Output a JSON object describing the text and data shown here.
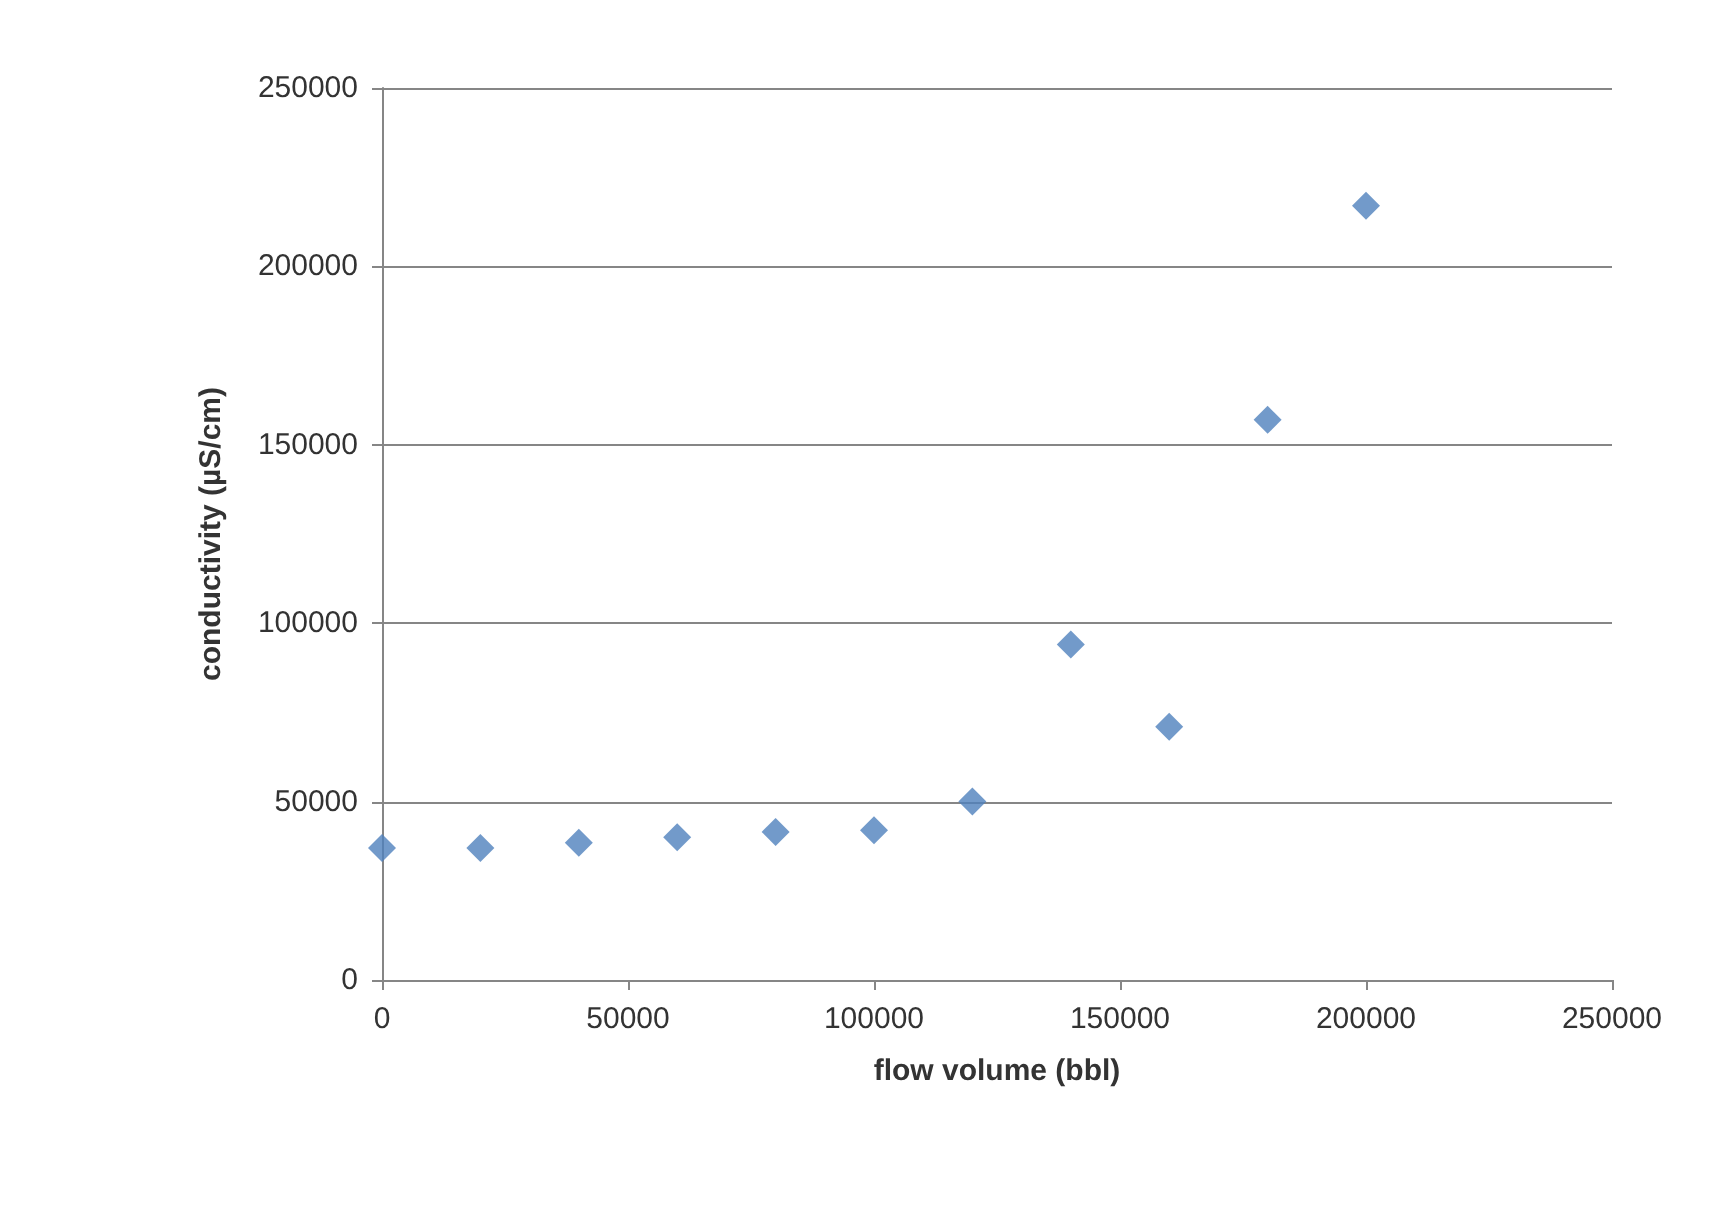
{
  "chart_data": {
    "type": "scatter",
    "xlabel": "flow volume (bbl)",
    "ylabel": "conductivity (µS/cm)",
    "x": [
      0,
      20000,
      40000,
      60000,
      80000,
      100000,
      120000,
      140000,
      160000,
      180000,
      200000
    ],
    "series": [
      {
        "color": "#4f81bd",
        "values": [
          37000,
          37000,
          38500,
          40000,
          41500,
          42000,
          50000,
          94000,
          71000,
          157000,
          217000
        ]
      }
    ],
    "xlim": [
      0,
      250000
    ],
    "xticks": [
      0,
      50000,
      100000,
      150000,
      200000,
      250000
    ],
    "ylim": [
      0,
      250000
    ],
    "yticks": [
      0,
      50000,
      100000,
      150000,
      200000,
      250000
    ],
    "grid": "y",
    "marker": "diamond"
  }
}
